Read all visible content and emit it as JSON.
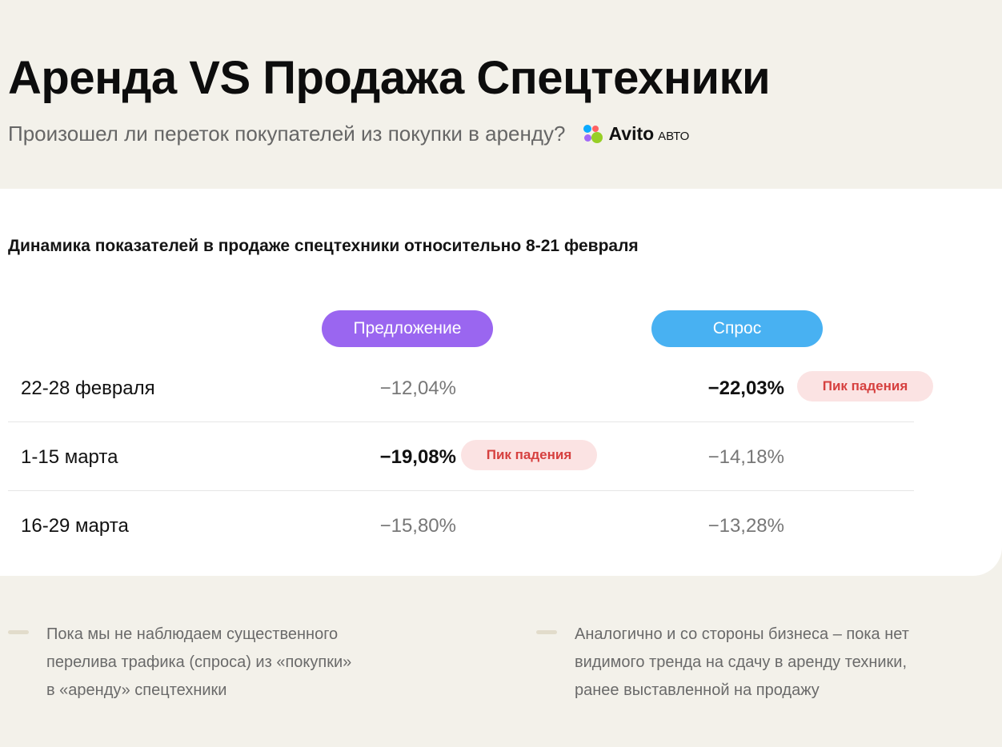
{
  "header": {
    "title": "Аренда VS Продажа Спецтехники",
    "subtitle": "Произошел ли переток покупателей из покупки в аренду?",
    "logo": {
      "brand": "Avito",
      "sub": "АВТО",
      "dot_colors": [
        "#97cf26",
        "#0af",
        "#a169f7",
        "#ff6163"
      ]
    }
  },
  "table": {
    "title": "Динамика показателей в продаже спецтехники относительно 8-21 февраля",
    "columns": {
      "supply": "Предложение",
      "demand": "Спрос"
    },
    "peak_label": "Пик падения",
    "rows": [
      {
        "period": "22-28 февраля",
        "supply": "−12,04%",
        "demand": "−22,03%"
      },
      {
        "period": "1-15 марта",
        "supply": "−19,08%",
        "demand": "−14,18%"
      },
      {
        "period": "16-29 марта",
        "supply": "−15,80%",
        "demand": "−13,28%"
      }
    ]
  },
  "notes": [
    {
      "text": "Пока мы не наблюдаем существенного\nперелива трафика (спроса) из «покупки»\nв «аренду» спецтехники"
    },
    {
      "text": "Аналогично и со стороны бизнеса – пока нет\nвидимого тренда на сдачу в аренду техники,\nранее выставленной на продажу"
    }
  ],
  "colors": {
    "supply_pill": "#9a66f0",
    "demand_pill": "#48b1f2",
    "badge_bg": "#fbe3e3",
    "badge_text": "#d6403f",
    "page_bg": "#f3f1ea"
  }
}
